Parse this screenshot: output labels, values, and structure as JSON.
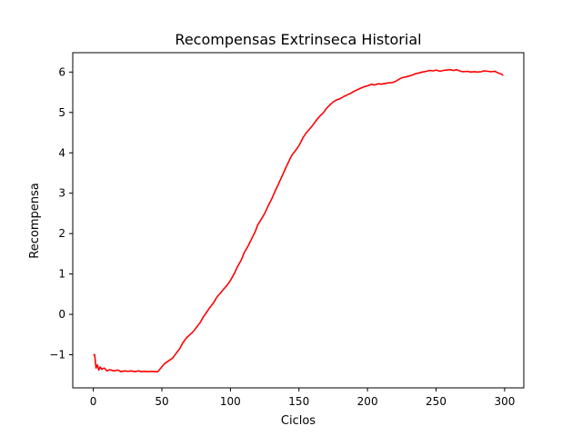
{
  "chart_data": {
    "type": "line",
    "title": "Recompensas Extrinseca Historial",
    "xlabel": "Ciclos",
    "ylabel": "Recompensa",
    "xlim": [
      -15,
      314
    ],
    "ylim": [
      -1.82,
      6.48
    ],
    "xticks": [
      0,
      50,
      100,
      150,
      200,
      250,
      300
    ],
    "yticks": [
      -1,
      0,
      1,
      2,
      3,
      4,
      5,
      6
    ],
    "xtick_labels": [
      "0",
      "50",
      "100",
      "150",
      "200",
      "250",
      "300"
    ],
    "ytick_labels": [
      "−1",
      "0",
      "1",
      "2",
      "3",
      "4",
      "5",
      "6"
    ],
    "grid": false,
    "series": [
      {
        "color": "#ff0000",
        "x": [
          0,
          1,
          2,
          3,
          4,
          5,
          6,
          8,
          10,
          12,
          15,
          18,
          20,
          23,
          25,
          28,
          30,
          33,
          35,
          38,
          40,
          43,
          45,
          47,
          48,
          50,
          52,
          55,
          58,
          60,
          63,
          65,
          68,
          70,
          73,
          75,
          78,
          80,
          83,
          85,
          88,
          90,
          93,
          95,
          98,
          100,
          103,
          105,
          108,
          110,
          113,
          115,
          118,
          120,
          123,
          125,
          128,
          130,
          133,
          135,
          138,
          140,
          143,
          145,
          148,
          150,
          153,
          155,
          158,
          160,
          163,
          165,
          168,
          170,
          173,
          175,
          178,
          180,
          183,
          185,
          188,
          190,
          193,
          195,
          198,
          200,
          203,
          205,
          208,
          210,
          213,
          215,
          218,
          220,
          223,
          225,
          228,
          230,
          233,
          235,
          238,
          240,
          243,
          245,
          248,
          250,
          253,
          255,
          258,
          260,
          263,
          265,
          268,
          270,
          273,
          275,
          278,
          280,
          283,
          285,
          288,
          290,
          293,
          295,
          297,
          299
        ],
        "y": [
          -1.0,
          -1.0,
          -1.33,
          -1.25,
          -1.38,
          -1.3,
          -1.36,
          -1.33,
          -1.4,
          -1.37,
          -1.4,
          -1.38,
          -1.42,
          -1.4,
          -1.41,
          -1.4,
          -1.42,
          -1.4,
          -1.42,
          -1.41,
          -1.42,
          -1.41,
          -1.42,
          -1.42,
          -1.38,
          -1.3,
          -1.22,
          -1.15,
          -1.08,
          -0.98,
          -0.85,
          -0.72,
          -0.58,
          -0.52,
          -0.42,
          -0.33,
          -0.2,
          -0.08,
          0.07,
          0.17,
          0.3,
          0.42,
          0.54,
          0.62,
          0.74,
          0.84,
          1.02,
          1.17,
          1.35,
          1.52,
          1.7,
          1.84,
          2.04,
          2.22,
          2.38,
          2.5,
          2.72,
          2.85,
          3.08,
          3.22,
          3.45,
          3.6,
          3.82,
          3.95,
          4.08,
          4.18,
          4.38,
          4.48,
          4.6,
          4.68,
          4.82,
          4.9,
          5.0,
          5.1,
          5.2,
          5.26,
          5.32,
          5.34,
          5.4,
          5.43,
          5.48,
          5.52,
          5.57,
          5.6,
          5.64,
          5.66,
          5.7,
          5.68,
          5.71,
          5.7,
          5.72,
          5.73,
          5.74,
          5.76,
          5.82,
          5.86,
          5.88,
          5.9,
          5.93,
          5.96,
          5.98,
          6.0,
          6.02,
          6.04,
          6.03,
          6.05,
          6.02,
          6.04,
          6.05,
          6.06,
          6.04,
          6.06,
          6.02,
          6.01,
          6.02,
          6.0,
          6.01,
          6.0,
          6.01,
          6.03,
          6.02,
          6.01,
          6.02,
          5.98,
          5.96,
          5.92
        ]
      }
    ]
  }
}
